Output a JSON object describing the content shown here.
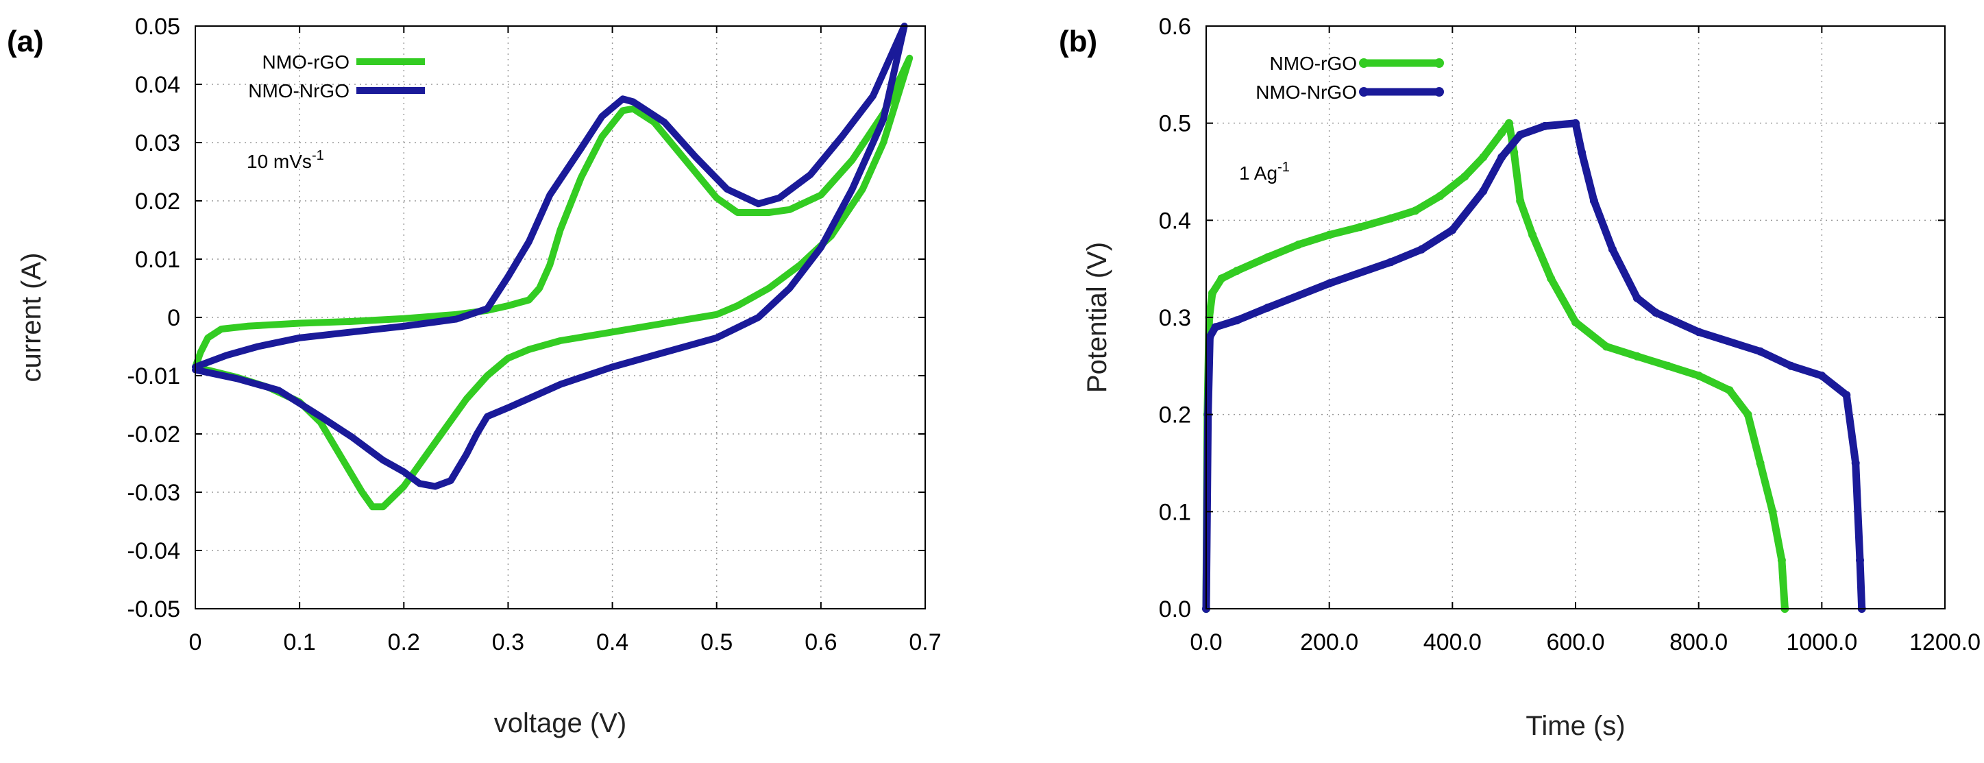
{
  "figure": {
    "panels": [
      {
        "label": "(a)",
        "annotation": {
          "text": "10 mVs",
          "superscript": "-1"
        }
      },
      {
        "label": "(b)",
        "annotation": {
          "text": "1 Ag",
          "superscript": "-1"
        }
      }
    ]
  },
  "chart_data": [
    {
      "type": "line",
      "title": "",
      "xlabel": "voltage (V)",
      "ylabel": "current (A)",
      "xlim": [
        0,
        0.7
      ],
      "ylim": [
        -0.05,
        0.05
      ],
      "xticks": [
        0,
        0.1,
        0.2,
        0.3,
        0.4,
        0.5,
        0.6,
        0.7
      ],
      "xtick_labels": [
        "0",
        "0.1",
        "0.2",
        "0.3",
        "0.4",
        "0.5",
        "0.6",
        "0.7"
      ],
      "yticks": [
        -0.05,
        -0.04,
        -0.03,
        -0.02,
        -0.01,
        0,
        0.01,
        0.02,
        0.03,
        0.04,
        0.05
      ],
      "ytick_labels": [
        "-0.05",
        "-0.04",
        "-0.03",
        "-0.02",
        "-0.01",
        "0",
        "0.01",
        "0.02",
        "0.03",
        "0.04",
        "0.05"
      ],
      "grid": true,
      "legend": "top-left",
      "series": [
        {
          "name": "NMO-rGO",
          "color": "#33cc22",
          "points": [
            [
              0.0,
              -0.0085
            ],
            [
              0.005,
              -0.006
            ],
            [
              0.012,
              -0.0035
            ],
            [
              0.025,
              -0.002
            ],
            [
              0.05,
              -0.0015
            ],
            [
              0.1,
              -0.001
            ],
            [
              0.15,
              -0.0007
            ],
            [
              0.2,
              -0.0002
            ],
            [
              0.25,
              0.0005
            ],
            [
              0.28,
              0.0012
            ],
            [
              0.3,
              0.002
            ],
            [
              0.32,
              0.003
            ],
            [
              0.33,
              0.005
            ],
            [
              0.34,
              0.009
            ],
            [
              0.35,
              0.015
            ],
            [
              0.37,
              0.024
            ],
            [
              0.39,
              0.031
            ],
            [
              0.41,
              0.0355
            ],
            [
              0.42,
              0.0358
            ],
            [
              0.44,
              0.0335
            ],
            [
              0.47,
              0.027
            ],
            [
              0.5,
              0.0205
            ],
            [
              0.52,
              0.018
            ],
            [
              0.55,
              0.018
            ],
            [
              0.57,
              0.0185
            ],
            [
              0.6,
              0.021
            ],
            [
              0.63,
              0.027
            ],
            [
              0.66,
              0.035
            ],
            [
              0.685,
              0.0445
            ],
            [
              0.66,
              0.03
            ],
            [
              0.64,
              0.022
            ],
            [
              0.61,
              0.014
            ],
            [
              0.58,
              0.009
            ],
            [
              0.55,
              0.005
            ],
            [
              0.52,
              0.002
            ],
            [
              0.5,
              0.0005
            ],
            [
              0.45,
              -0.001
            ],
            [
              0.4,
              -0.0025
            ],
            [
              0.35,
              -0.004
            ],
            [
              0.32,
              -0.0055
            ],
            [
              0.3,
              -0.007
            ],
            [
              0.28,
              -0.01
            ],
            [
              0.26,
              -0.014
            ],
            [
              0.24,
              -0.019
            ],
            [
              0.22,
              -0.024
            ],
            [
              0.2,
              -0.029
            ],
            [
              0.18,
              -0.0325
            ],
            [
              0.17,
              -0.0325
            ],
            [
              0.16,
              -0.03
            ],
            [
              0.14,
              -0.024
            ],
            [
              0.12,
              -0.018
            ],
            [
              0.1,
              -0.0145
            ],
            [
              0.07,
              -0.012
            ],
            [
              0.04,
              -0.0103
            ],
            [
              0.0,
              -0.0085
            ]
          ]
        },
        {
          "name": "NMO-NrGO",
          "color": "#1a1a99",
          "points": [
            [
              0.0,
              -0.0085
            ],
            [
              0.03,
              -0.0065
            ],
            [
              0.06,
              -0.005
            ],
            [
              0.1,
              -0.0035
            ],
            [
              0.15,
              -0.0025
            ],
            [
              0.2,
              -0.0015
            ],
            [
              0.25,
              -0.0003
            ],
            [
              0.28,
              0.0015
            ],
            [
              0.3,
              0.007
            ],
            [
              0.32,
              0.013
            ],
            [
              0.34,
              0.021
            ],
            [
              0.37,
              0.029
            ],
            [
              0.39,
              0.0345
            ],
            [
              0.41,
              0.0375
            ],
            [
              0.42,
              0.037
            ],
            [
              0.45,
              0.0335
            ],
            [
              0.48,
              0.0275
            ],
            [
              0.51,
              0.022
            ],
            [
              0.54,
              0.0195
            ],
            [
              0.56,
              0.0205
            ],
            [
              0.59,
              0.0245
            ],
            [
              0.62,
              0.031
            ],
            [
              0.65,
              0.038
            ],
            [
              0.68,
              0.05
            ],
            [
              0.66,
              0.034
            ],
            [
              0.63,
              0.022
            ],
            [
              0.6,
              0.012
            ],
            [
              0.57,
              0.005
            ],
            [
              0.54,
              0.0
            ],
            [
              0.5,
              -0.0035
            ],
            [
              0.45,
              -0.006
            ],
            [
              0.4,
              -0.0085
            ],
            [
              0.35,
              -0.0115
            ],
            [
              0.3,
              -0.0155
            ],
            [
              0.28,
              -0.017
            ],
            [
              0.27,
              -0.02
            ],
            [
              0.26,
              -0.0235
            ],
            [
              0.245,
              -0.028
            ],
            [
              0.23,
              -0.029
            ],
            [
              0.215,
              -0.0285
            ],
            [
              0.2,
              -0.0265
            ],
            [
              0.18,
              -0.0245
            ],
            [
              0.15,
              -0.0205
            ],
            [
              0.12,
              -0.017
            ],
            [
              0.08,
              -0.0125
            ],
            [
              0.04,
              -0.0105
            ],
            [
              0.0,
              -0.009
            ]
          ]
        }
      ]
    },
    {
      "type": "line",
      "title": "",
      "xlabel": "Time (s)",
      "ylabel": "Potential (V)",
      "xlim": [
        0,
        1200
      ],
      "ylim": [
        0,
        0.6
      ],
      "xticks": [
        0,
        200,
        400,
        600,
        800,
        1000,
        1200
      ],
      "xtick_labels": [
        "0.0",
        "200.0",
        "400.0",
        "600.0",
        "800.0",
        "1000.0",
        "1200.0"
      ],
      "yticks": [
        0,
        0.1,
        0.2,
        0.3,
        0.4,
        0.5,
        0.6
      ],
      "ytick_labels": [
        "0.0",
        "0.1",
        "0.2",
        "0.3",
        "0.4",
        "0.5",
        "0.6"
      ],
      "grid": true,
      "legend": "top-left",
      "series": [
        {
          "name": "NMO-rGO",
          "color": "#33cc22",
          "points": [
            [
              0,
              0.0
            ],
            [
              2,
              0.2
            ],
            [
              5,
              0.3
            ],
            [
              10,
              0.325
            ],
            [
              25,
              0.34
            ],
            [
              50,
              0.348
            ],
            [
              100,
              0.362
            ],
            [
              150,
              0.375
            ],
            [
              200,
              0.385
            ],
            [
              250,
              0.393
            ],
            [
              300,
              0.402
            ],
            [
              340,
              0.41
            ],
            [
              380,
              0.425
            ],
            [
              420,
              0.445
            ],
            [
              450,
              0.465
            ],
            [
              480,
              0.49
            ],
            [
              492,
              0.5
            ],
            [
              500,
              0.47
            ],
            [
              510,
              0.42
            ],
            [
              530,
              0.385
            ],
            [
              560,
              0.34
            ],
            [
              600,
              0.295
            ],
            [
              650,
              0.27
            ],
            [
              700,
              0.26
            ],
            [
              750,
              0.25
            ],
            [
              800,
              0.24
            ],
            [
              850,
              0.225
            ],
            [
              880,
              0.2
            ],
            [
              900,
              0.15
            ],
            [
              920,
              0.1
            ],
            [
              935,
              0.05
            ],
            [
              940,
              0.0
            ]
          ]
        },
        {
          "name": "NMO-NrGO",
          "color": "#1a1a99",
          "points": [
            [
              0,
              0.0
            ],
            [
              3,
              0.2
            ],
            [
              6,
              0.28
            ],
            [
              15,
              0.29
            ],
            [
              50,
              0.297
            ],
            [
              100,
              0.31
            ],
            [
              200,
              0.335
            ],
            [
              300,
              0.357
            ],
            [
              350,
              0.37
            ],
            [
              400,
              0.39
            ],
            [
              450,
              0.43
            ],
            [
              480,
              0.465
            ],
            [
              510,
              0.488
            ],
            [
              550,
              0.497
            ],
            [
              600,
              0.5
            ],
            [
              610,
              0.47
            ],
            [
              630,
              0.42
            ],
            [
              660,
              0.37
            ],
            [
              700,
              0.32
            ],
            [
              730,
              0.305
            ],
            [
              800,
              0.285
            ],
            [
              900,
              0.265
            ],
            [
              950,
              0.25
            ],
            [
              1000,
              0.24
            ],
            [
              1040,
              0.22
            ],
            [
              1055,
              0.15
            ],
            [
              1062,
              0.05
            ],
            [
              1065,
              0.0
            ]
          ]
        }
      ]
    }
  ]
}
